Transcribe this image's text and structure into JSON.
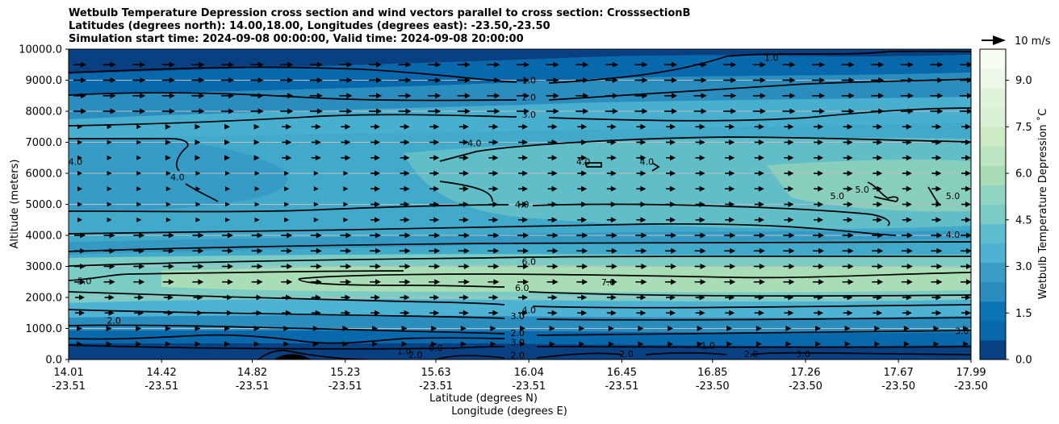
{
  "title_lines": [
    "Wetbulb Temperature Depression cross section and wind vectors parallel to cross section: CrosssectionB",
    "Latitudes (degrees north): 14.00,18.00, Longitudes (degrees east): -23.50,-23.50",
    "Simulation start time: 2024-09-08 00:00:00, Valid time: 2024-09-08 20:00:00"
  ],
  "chart_data": {
    "type": "heatmap",
    "ylabel": "Altitude (meters)",
    "xlabel_lat": "Latitude (degrees N)",
    "xlabel_lon": "Longitude (degrees E)",
    "ylim": [
      0,
      10000
    ],
    "y_ticks": [
      "0.0",
      "1000.0",
      "2000.0",
      "3000.0",
      "4000.0",
      "5000.0",
      "6000.0",
      "7000.0",
      "8000.0",
      "9000.0",
      "10000.0"
    ],
    "x_ticks": [
      {
        "lat": "14.01",
        "lon": "-23.51"
      },
      {
        "lat": "14.42",
        "lon": "-23.51"
      },
      {
        "lat": "14.82",
        "lon": "-23.51"
      },
      {
        "lat": "15.23",
        "lon": "-23.51"
      },
      {
        "lat": "15.63",
        "lon": "-23.51"
      },
      {
        "lat": "16.04",
        "lon": "-23.51"
      },
      {
        "lat": "16.45",
        "lon": "-23.51"
      },
      {
        "lat": "16.85",
        "lon": "-23.50"
      },
      {
        "lat": "17.26",
        "lon": "-23.50"
      },
      {
        "lat": "17.67",
        "lon": "-23.50"
      },
      {
        "lat": "17.99",
        "lon": "-23.50"
      }
    ],
    "colorbar": {
      "label": "Wetbulb Temperature Depression ˚C",
      "range": [
        0,
        10
      ],
      "ticks": [
        "0.0",
        "1.5",
        "3.0",
        "4.5",
        "6.0",
        "7.5",
        "9.0"
      ],
      "tick_values": [
        0,
        1.5,
        3.0,
        4.5,
        6.0,
        7.5,
        9.0
      ]
    },
    "wind_key": {
      "label": "10 m/s",
      "speed": 10
    },
    "grid": "horizontal",
    "contour_levels": [
      1,
      2,
      3,
      4,
      5,
      6,
      7
    ],
    "contour_labels": [
      {
        "text": "1.0",
        "lat": 16.04,
        "alt": 8920
      },
      {
        "text": "2.0",
        "lat": 16.04,
        "alt": 8380
      },
      {
        "text": "3.0",
        "lat": 16.04,
        "alt": 7820
      },
      {
        "text": "4.0",
        "lat": 16.01,
        "alt": 4920
      },
      {
        "text": "6.0",
        "lat": 16.04,
        "alt": 3080
      },
      {
        "text": "6.0",
        "lat": 16.01,
        "alt": 2240
      },
      {
        "text": "4.0",
        "lat": 16.04,
        "alt": 1520
      },
      {
        "text": "3.0",
        "lat": 15.99,
        "alt": 1320
      },
      {
        "text": "2.0",
        "lat": 15.99,
        "alt": 780
      },
      {
        "text": "3.0",
        "lat": 15.99,
        "alt": 480
      },
      {
        "text": "2.0",
        "lat": 15.99,
        "alt": 60
      },
      {
        "text": "4.0",
        "lat": 14.04,
        "alt": 6300
      },
      {
        "text": "4.0",
        "lat": 14.49,
        "alt": 5800
      },
      {
        "text": "5.0",
        "lat": 14.08,
        "alt": 2450
      },
      {
        "text": "2.0",
        "lat": 14.21,
        "alt": 1180
      },
      {
        "text": "1.0",
        "lat": 15.49,
        "alt": 200
      },
      {
        "text": "2.0",
        "lat": 15.54,
        "alt": 80
      },
      {
        "text": "4.0",
        "lat": 15.8,
        "alt": 6900
      },
      {
        "text": "4.0",
        "lat": 16.28,
        "alt": 6300
      },
      {
        "text": "4.0",
        "lat": 16.56,
        "alt": 6300
      },
      {
        "text": "7.0",
        "lat": 16.39,
        "alt": 2420
      },
      {
        "text": "2.0",
        "lat": 16.47,
        "alt": 100
      },
      {
        "text": "1.0",
        "lat": 16.83,
        "alt": 380
      },
      {
        "text": "2.0",
        "lat": 17.02,
        "alt": 100
      },
      {
        "text": "3.0",
        "lat": 17.25,
        "alt": 100
      },
      {
        "text": "1.0",
        "lat": 17.11,
        "alt": 9650
      },
      {
        "text": "5.0",
        "lat": 17.4,
        "alt": 5200
      },
      {
        "text": "5.0",
        "lat": 17.51,
        "alt": 5400
      },
      {
        "text": "5.0",
        "lat": 17.91,
        "alt": 5200
      },
      {
        "text": "4.0",
        "lat": 17.91,
        "alt": 3950
      },
      {
        "text": "3.0",
        "lat": 17.95,
        "alt": 850
      },
      {
        "text": "0.0",
        "lat": 15.63,
        "alt": 300
      }
    ]
  }
}
